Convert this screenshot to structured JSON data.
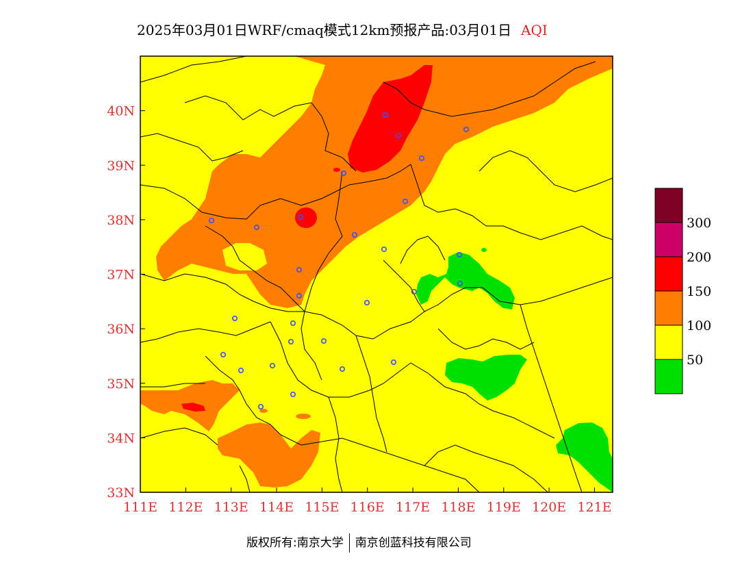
{
  "title": {
    "main": "2025年03月01日WRF/cmaq模式12km预报产品:03月01日",
    "product": "AQI"
  },
  "map": {
    "lon_range": [
      111,
      121.4
    ],
    "lat_range": [
      33,
      41
    ],
    "lon_ticks": [
      "111E",
      "112E",
      "113E",
      "114E",
      "115E",
      "116E",
      "117E",
      "118E",
      "119E",
      "120E",
      "121E"
    ],
    "lat_ticks": [
      "33N",
      "34N",
      "35N",
      "36N",
      "37N",
      "38N",
      "39N",
      "40N"
    ]
  },
  "legend": {
    "levels": [
      {
        "label": "",
        "color": "#00e000"
      },
      {
        "label": "50",
        "color": "#ffff00"
      },
      {
        "label": "100",
        "color": "#ff7e00"
      },
      {
        "label": "150",
        "color": "#ff0000"
      },
      {
        "label": "200",
        "color": "#cc0066"
      },
      {
        "label": "300",
        "color": "#7e0023"
      }
    ]
  },
  "colors": {
    "good": "#00e000",
    "moderate": "#ffff00",
    "sensitive": "#ff7e00",
    "unhealthy": "#ff0000",
    "very_unhealthy": "#cc0066",
    "hazardous": "#7e0023",
    "axis_label": "#e03030",
    "station_marker": "#3a50ff"
  },
  "footer": {
    "left": "版权所有:南京大学",
    "right": "南京创蓝科技有限公司"
  }
}
